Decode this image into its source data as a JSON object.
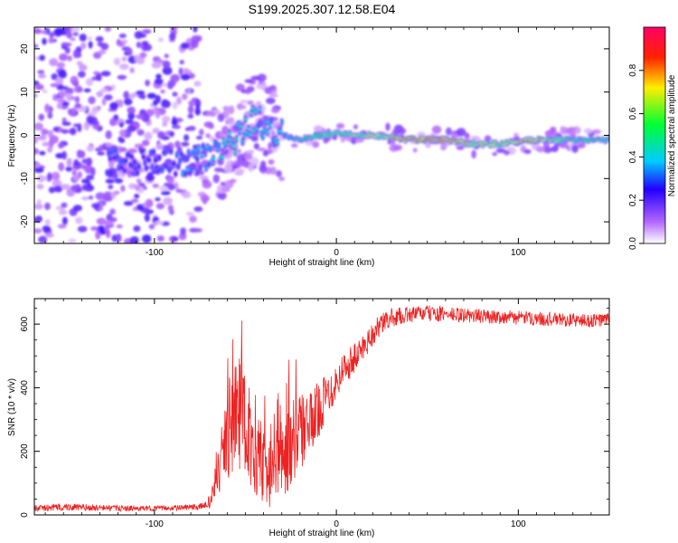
{
  "title": "S199.2025.307.12.58.E04",
  "chart_data": [
    {
      "type": "heatmap",
      "xlabel": "Height of straight line (km)",
      "ylabel": "Frequency (Hz)",
      "xlim": [
        -166,
        150
      ],
      "ylim": [
        -25,
        25
      ],
      "xticks": [
        -100,
        0,
        100
      ],
      "yticks": [
        -20,
        -10,
        0,
        10,
        20
      ],
      "colorbar": {
        "label": "Normalized spectral amplitude",
        "range": [
          0,
          1
        ],
        "ticks": [
          0.0,
          0.2,
          0.4,
          0.6,
          0.8
        ],
        "colors": [
          "#ffffff",
          "#b266ff",
          "#2200ff",
          "#00ccff",
          "#00ff33",
          "#ffee00",
          "#ff2200",
          "#ff0066"
        ]
      },
      "ridge": [
        {
          "x": -100,
          "y": -6,
          "a": 0.3
        },
        {
          "x": -80,
          "y": -6,
          "a": 0.35
        },
        {
          "x": -60,
          "y": -3,
          "a": 0.45
        },
        {
          "x": -45,
          "y": 4,
          "a": 0.4
        },
        {
          "x": -35,
          "y": 1,
          "a": 0.4
        },
        {
          "x": -20,
          "y": -1,
          "a": 0.45
        },
        {
          "x": -10,
          "y": 0,
          "a": 0.55
        },
        {
          "x": 0,
          "y": 0.5,
          "a": 0.65
        },
        {
          "x": 20,
          "y": 0,
          "a": 0.7
        },
        {
          "x": 40,
          "y": -1,
          "a": 0.85
        },
        {
          "x": 60,
          "y": -1,
          "a": 0.8
        },
        {
          "x": 75,
          "y": -2,
          "a": 0.75
        },
        {
          "x": 90,
          "y": -2,
          "a": 0.7
        },
        {
          "x": 110,
          "y": -1,
          "a": 0.8
        },
        {
          "x": 130,
          "y": -1,
          "a": 0.55
        },
        {
          "x": 150,
          "y": -1,
          "a": 0.5
        }
      ]
    },
    {
      "type": "line",
      "xlabel": "Height of straight line (km)",
      "ylabel": "SNR (10 * v/v)",
      "xlim": [
        -166,
        150
      ],
      "ylim": [
        0,
        680
      ],
      "xticks": [
        -100,
        0,
        100
      ],
      "yticks": [
        0,
        200,
        400,
        600
      ],
      "color": "#ee2222",
      "series": [
        {
          "name": "SNR",
          "x": [
            -166,
            -150,
            -130,
            -110,
            -90,
            -75,
            -70,
            -65,
            -60,
            -55,
            -50,
            -45,
            -40,
            -35,
            -30,
            -25,
            -20,
            -15,
            -10,
            -5,
            0,
            5,
            10,
            15,
            20,
            25,
            30,
            40,
            50,
            60,
            80,
            100,
            120,
            140,
            150
          ],
          "y": [
            20,
            25,
            22,
            20,
            22,
            25,
            40,
            120,
            260,
            330,
            300,
            200,
            150,
            130,
            170,
            230,
            260,
            280,
            330,
            380,
            420,
            470,
            490,
            530,
            570,
            600,
            620,
            630,
            635,
            630,
            625,
            620,
            615,
            610,
            615
          ],
          "noise": [
            10,
            12,
            10,
            8,
            8,
            10,
            20,
            80,
            150,
            180,
            170,
            140,
            120,
            110,
            130,
            140,
            120,
            100,
            90,
            70,
            60,
            55,
            50,
            45,
            40,
            35,
            30,
            25,
            25,
            25,
            22,
            22,
            22,
            22,
            22
          ]
        }
      ]
    }
  ]
}
